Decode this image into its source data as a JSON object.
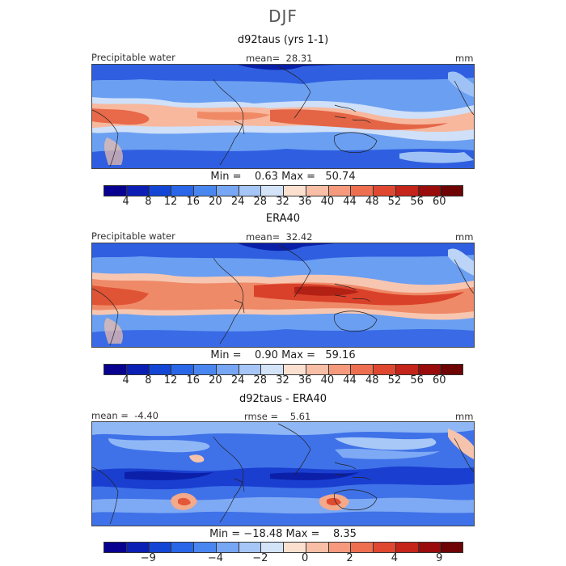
{
  "figure": {
    "season": "DJF"
  },
  "panels": [
    {
      "title": "d92taus (yrs 1-1)",
      "left_label": "Precipitable water",
      "center_label": "mean=  28.31",
      "unit": "mm",
      "minmax": "Min =    0.63 Max =   50.74"
    },
    {
      "title": "ERA40",
      "left_label": "Precipitable water",
      "center_label": "mean=  32.42",
      "unit": "mm",
      "minmax": "Min =    0.90 Max =   59.16"
    },
    {
      "title": "d92taus - ERA40",
      "left_label": "mean =  -4.40",
      "center_label": "rmse =    5.61",
      "unit": "mm",
      "minmax": "Min = −18.48 Max =    8.35"
    }
  ],
  "colorbars": [
    {
      "colors": [
        "#08008f",
        "#0b1fb5",
        "#1446d6",
        "#2a66e8",
        "#4a86f0",
        "#77a6f5",
        "#a5c6f7",
        "#d3e3f8",
        "#fbe0d0",
        "#f9bfa6",
        "#f59a7c",
        "#ee6f50",
        "#e04730",
        "#c4241a",
        "#9a0c0c",
        "#6e0404"
      ],
      "ticks": [
        "4",
        "8",
        "12",
        "16",
        "20",
        "24",
        "28",
        "32",
        "36",
        "40",
        "44",
        "48",
        "52",
        "56",
        "60"
      ],
      "tick_index": [
        1,
        2,
        3,
        4,
        5,
        6,
        7,
        8,
        9,
        10,
        11,
        12,
        13,
        14,
        15
      ]
    },
    {
      "colors": [
        "#08008f",
        "#0b1fb5",
        "#1446d6",
        "#2a66e8",
        "#4a86f0",
        "#77a6f5",
        "#a5c6f7",
        "#d3e3f8",
        "#fbe0d0",
        "#f9bfa6",
        "#f59a7c",
        "#ee6f50",
        "#e04730",
        "#c4241a",
        "#9a0c0c",
        "#6e0404"
      ],
      "ticks": [
        "4",
        "8",
        "12",
        "16",
        "20",
        "24",
        "28",
        "32",
        "36",
        "40",
        "44",
        "48",
        "52",
        "56",
        "60"
      ],
      "tick_index": [
        1,
        2,
        3,
        4,
        5,
        6,
        7,
        8,
        9,
        10,
        11,
        12,
        13,
        14,
        15
      ]
    },
    {
      "colors": [
        "#08008f",
        "#0b1fb5",
        "#1446d6",
        "#2a66e8",
        "#4a86f0",
        "#77a6f5",
        "#a5c6f7",
        "#d3e3f8",
        "#fbe0d0",
        "#f9bfa6",
        "#f59a7c",
        "#ee6f50",
        "#e04730",
        "#c4241a",
        "#9a0c0c",
        "#6e0404"
      ],
      "ticks": [
        "−9",
        "−4",
        "−2",
        "0",
        "2",
        "4",
        "9"
      ],
      "tick_index": [
        2,
        5,
        7,
        9,
        11,
        13,
        15
      ]
    }
  ]
}
